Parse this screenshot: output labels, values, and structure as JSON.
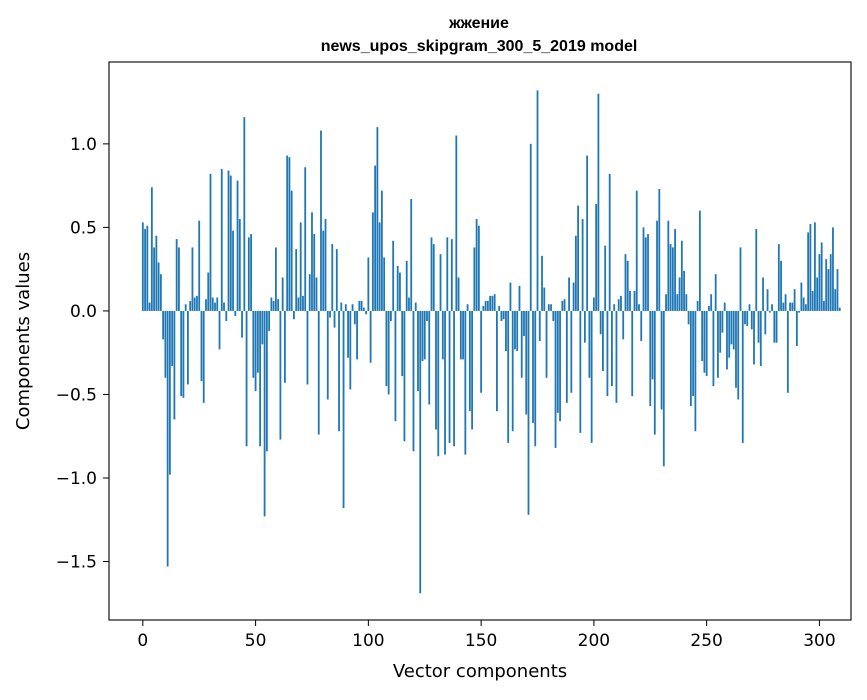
{
  "chart_data": {
    "type": "bar",
    "title_line1": "жжение",
    "title_line2": "news_upos_skipgram_300_5_2019 model",
    "xlabel": "Vector components",
    "ylabel": "Components values",
    "xlim": [
      -15,
      314
    ],
    "ylim": [
      -1.85,
      1.49
    ],
    "x_ticks": [
      0,
      50,
      100,
      150,
      200,
      250,
      300
    ],
    "x_tick_labels": [
      "0",
      "50",
      "100",
      "150",
      "200",
      "250",
      "300"
    ],
    "y_ticks": [
      -1.5,
      -1.0,
      -0.5,
      0.0,
      0.5,
      1.0
    ],
    "y_tick_labels": [
      "−1.5",
      "−1.0",
      "−0.5",
      "0.0",
      "0.5",
      "1.0"
    ],
    "bar_color": "#1f77b4",
    "values": [
      0.53,
      0.49,
      0.51,
      0.05,
      0.74,
      0.38,
      0.45,
      0.29,
      0.22,
      -0.17,
      -0.4,
      -1.53,
      -0.98,
      -0.33,
      -0.65,
      0.43,
      0.38,
      -0.51,
      -0.52,
      0.04,
      -0.44,
      0.06,
      0.38,
      0.08,
      0.09,
      0.54,
      -0.42,
      -0.55,
      0.07,
      0.23,
      0.82,
      0.08,
      0.05,
      0.08,
      -0.23,
      0.85,
      0.05,
      -0.06,
      0.84,
      0.81,
      0.48,
      -0.03,
      0.78,
      0.55,
      -0.16,
      1.16,
      -0.81,
      0.44,
      0.46,
      -0.4,
      -0.48,
      -0.37,
      -0.81,
      -0.2,
      -1.23,
      -0.84,
      -0.12,
      0.08,
      0.06,
      0.38,
      0.07,
      -0.77,
      0.2,
      -0.43,
      0.93,
      0.92,
      0.72,
      -0.05,
      0.37,
      0.08,
      0.53,
      0.09,
      0.86,
      -0.44,
      0.22,
      0.59,
      0.46,
      0.2,
      -0.74,
      1.08,
      0.48,
      0.55,
      -0.53,
      -0.04,
      0.4,
      -0.1,
      0.37,
      -0.72,
      0.05,
      -1.18,
      0.04,
      -0.28,
      -0.47,
      0.04,
      -0.08,
      -0.29,
      0.06,
      0.06,
      0.02,
      -0.02,
      0.32,
      -0.31,
      0.59,
      0.87,
      1.1,
      0.53,
      0.72,
      0.32,
      -0.45,
      -0.5,
      -0.06,
      0.42,
      -0.66,
      0.27,
      0.23,
      -0.39,
      -0.78,
      0.3,
      0.08,
      0.67,
      -0.84,
      0.05,
      -0.48,
      -1.69,
      -0.3,
      -0.29,
      -0.06,
      -0.56,
      0.44,
      0.4,
      -0.71,
      -0.87,
      0.34,
      -0.29,
      -0.86,
      0.44,
      -0.79,
      0.43,
      -0.81,
      1.05,
      0.2,
      -0.29,
      -0.29,
      -0.86,
      0.04,
      -0.6,
      -0.71,
      0.38,
      0.55,
      0.51,
      -0.49,
      0.03,
      0.06,
      0.06,
      0.09,
      0.09,
      0.1,
      -0.6,
      0.03,
      -0.06,
      -0.05,
      -0.24,
      -0.79,
      0.17,
      -0.72,
      -0.23,
      -0.24,
      0.15,
      -0.4,
      -0.15,
      -0.62,
      -1.22,
      1.0,
      -0.67,
      -0.81,
      1.32,
      -0.18,
      0.33,
      0.14,
      -0.4,
      0.04,
      0.04,
      -0.06,
      -0.82,
      -0.61,
      -0.66,
      0.06,
      0.07,
      -0.55,
      0.2,
      -0.49,
      0.17,
      0.45,
      0.63,
      -0.73,
      0.55,
      -0.19,
      0.93,
      -0.4,
      -0.79,
      0.08,
      0.64,
      1.3,
      -0.14,
      -0.36,
      0.39,
      -0.51,
      0.82,
      -0.45,
      0.04,
      -0.55,
      0.07,
      0.09,
      -0.17,
      0.34,
      0.3,
      0.12,
      -0.51,
      0.12,
      0.72,
      0.04,
      -0.18,
      0.5,
      0.44,
      0.46,
      -0.57,
      -0.41,
      -0.74,
      0.54,
      0.73,
      -0.59,
      -0.93,
      0.1,
      0.54,
      0.4,
      0.38,
      0.49,
      0.1,
      0.2,
      0.42,
      0.24,
      0.1,
      -0.08,
      -0.57,
      -0.51,
      -0.72,
      0.06,
      0.6,
      -0.3,
      -0.37,
      -0.39,
      0.03,
      0.1,
      -0.45,
      0.22,
      -0.4,
      -0.25,
      -0.13,
      0.05,
      -0.35,
      -0.28,
      -0.2,
      -0.23,
      -0.46,
      -0.53,
      0.38,
      -0.79,
      -0.08,
      -0.09,
      0.04,
      -0.11,
      -0.32,
      0.49,
      -0.19,
      -0.33,
      0.2,
      -0.14,
      0.13,
      -0.01,
      0.04,
      -0.19,
      -0.19,
      0.4,
      0.3,
      0.05,
      0.1,
      -0.49,
      0.05,
      0.05,
      0.13,
      -0.21,
      -0.01,
      0.17,
      0.08,
      0.04,
      0.47,
      0.52,
      0.12,
      0.53,
      0.2,
      0.34,
      0.41,
      0.06,
      0.31,
      0.25,
      0.34,
      0.5,
      0.13,
      0.25,
      0.02
    ]
  }
}
